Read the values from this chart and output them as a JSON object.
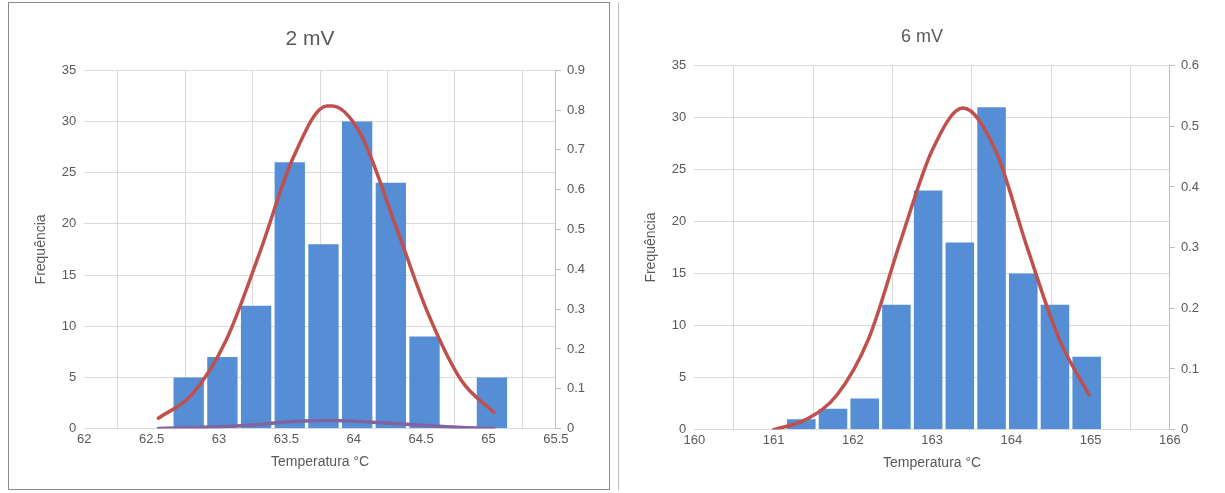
{
  "chart_data": [
    {
      "type": "histogram",
      "title": "2 mV",
      "xlabel": "Temperatura °C",
      "ylabel": "Frequência",
      "xlim": [
        62,
        65.5
      ],
      "xticks": [
        62,
        62.5,
        63,
        63.5,
        64,
        64.5,
        65,
        65.5
      ],
      "ylim": [
        0,
        35
      ],
      "yticks": [
        0,
        5,
        10,
        15,
        20,
        25,
        30,
        35
      ],
      "y2lim": [
        0,
        0.9
      ],
      "y2ticks": [
        0,
        0.1,
        0.2,
        0.3,
        0.4,
        0.5,
        0.6,
        0.7,
        0.8,
        0.9
      ],
      "grid": true,
      "legend": false,
      "series": [
        {
          "color": "#558ed5",
          "bins": [
            62.65,
            62.9,
            63.15,
            63.4,
            63.65,
            63.9,
            64.15,
            64.4,
            64.65,
            64.9,
            65.15
          ],
          "values": [
            5,
            7,
            12,
            26,
            18,
            30,
            24,
            9,
            0,
            5
          ]
        },
        {
          "type": "line",
          "color": "#c0504d",
          "axis": "y2",
          "x": [
            62.55,
            62.8,
            63.05,
            63.3,
            63.55,
            63.8,
            63.84,
            64.05,
            64.3,
            64.55,
            64.8,
            65.04
          ],
          "values": [
            0.026,
            0.086,
            0.22,
            0.44,
            0.68,
            0.81,
            0.81,
            0.74,
            0.52,
            0.29,
            0.12,
            0.041
          ]
        },
        {
          "type": "line",
          "color": "#8064a2",
          "x": [
            62.55,
            62.8,
            63.05,
            63.3,
            63.55,
            63.8,
            63.84,
            64.05,
            64.3,
            64.55,
            64.8,
            65.04
          ],
          "values": [
            0,
            0.1,
            0.2,
            0.4,
            0.7,
            0.8,
            0.8,
            0.7,
            0.5,
            0.3,
            0.1,
            0
          ]
        }
      ]
    },
    {
      "type": "histogram",
      "title": "6 mV",
      "xlabel": "Temperatura °C",
      "ylabel": "Frequência",
      "xlim": [
        160,
        166
      ],
      "xticks": [
        160,
        161,
        162,
        163,
        164,
        165,
        166
      ],
      "ylim": [
        0,
        35
      ],
      "yticks": [
        0,
        5,
        10,
        15,
        20,
        25,
        30,
        35
      ],
      "y2lim": [
        0,
        0.6
      ],
      "y2ticks": [
        0,
        0.1,
        0.2,
        0.3,
        0.4,
        0.5,
        0.6
      ],
      "grid": true,
      "legend": false,
      "series": [
        {
          "color": "#558ed5",
          "bins": [
            161.15,
            161.55,
            161.95,
            162.35,
            162.75,
            163.15,
            163.55,
            163.95,
            164.35,
            164.75,
            165.15
          ],
          "values": [
            1,
            2,
            3,
            12,
            23,
            18,
            31,
            15,
            12,
            7
          ]
        },
        {
          "type": "line",
          "color": "#c0504d",
          "axis": "y2",
          "x": [
            161.0,
            161.4,
            161.8,
            162.2,
            162.6,
            163.0,
            163.39,
            163.8,
            164.2,
            164.6,
            164.98
          ],
          "values": [
            0,
            0.016,
            0.057,
            0.15,
            0.31,
            0.46,
            0.53,
            0.46,
            0.3,
            0.15,
            0.057
          ]
        }
      ]
    }
  ]
}
